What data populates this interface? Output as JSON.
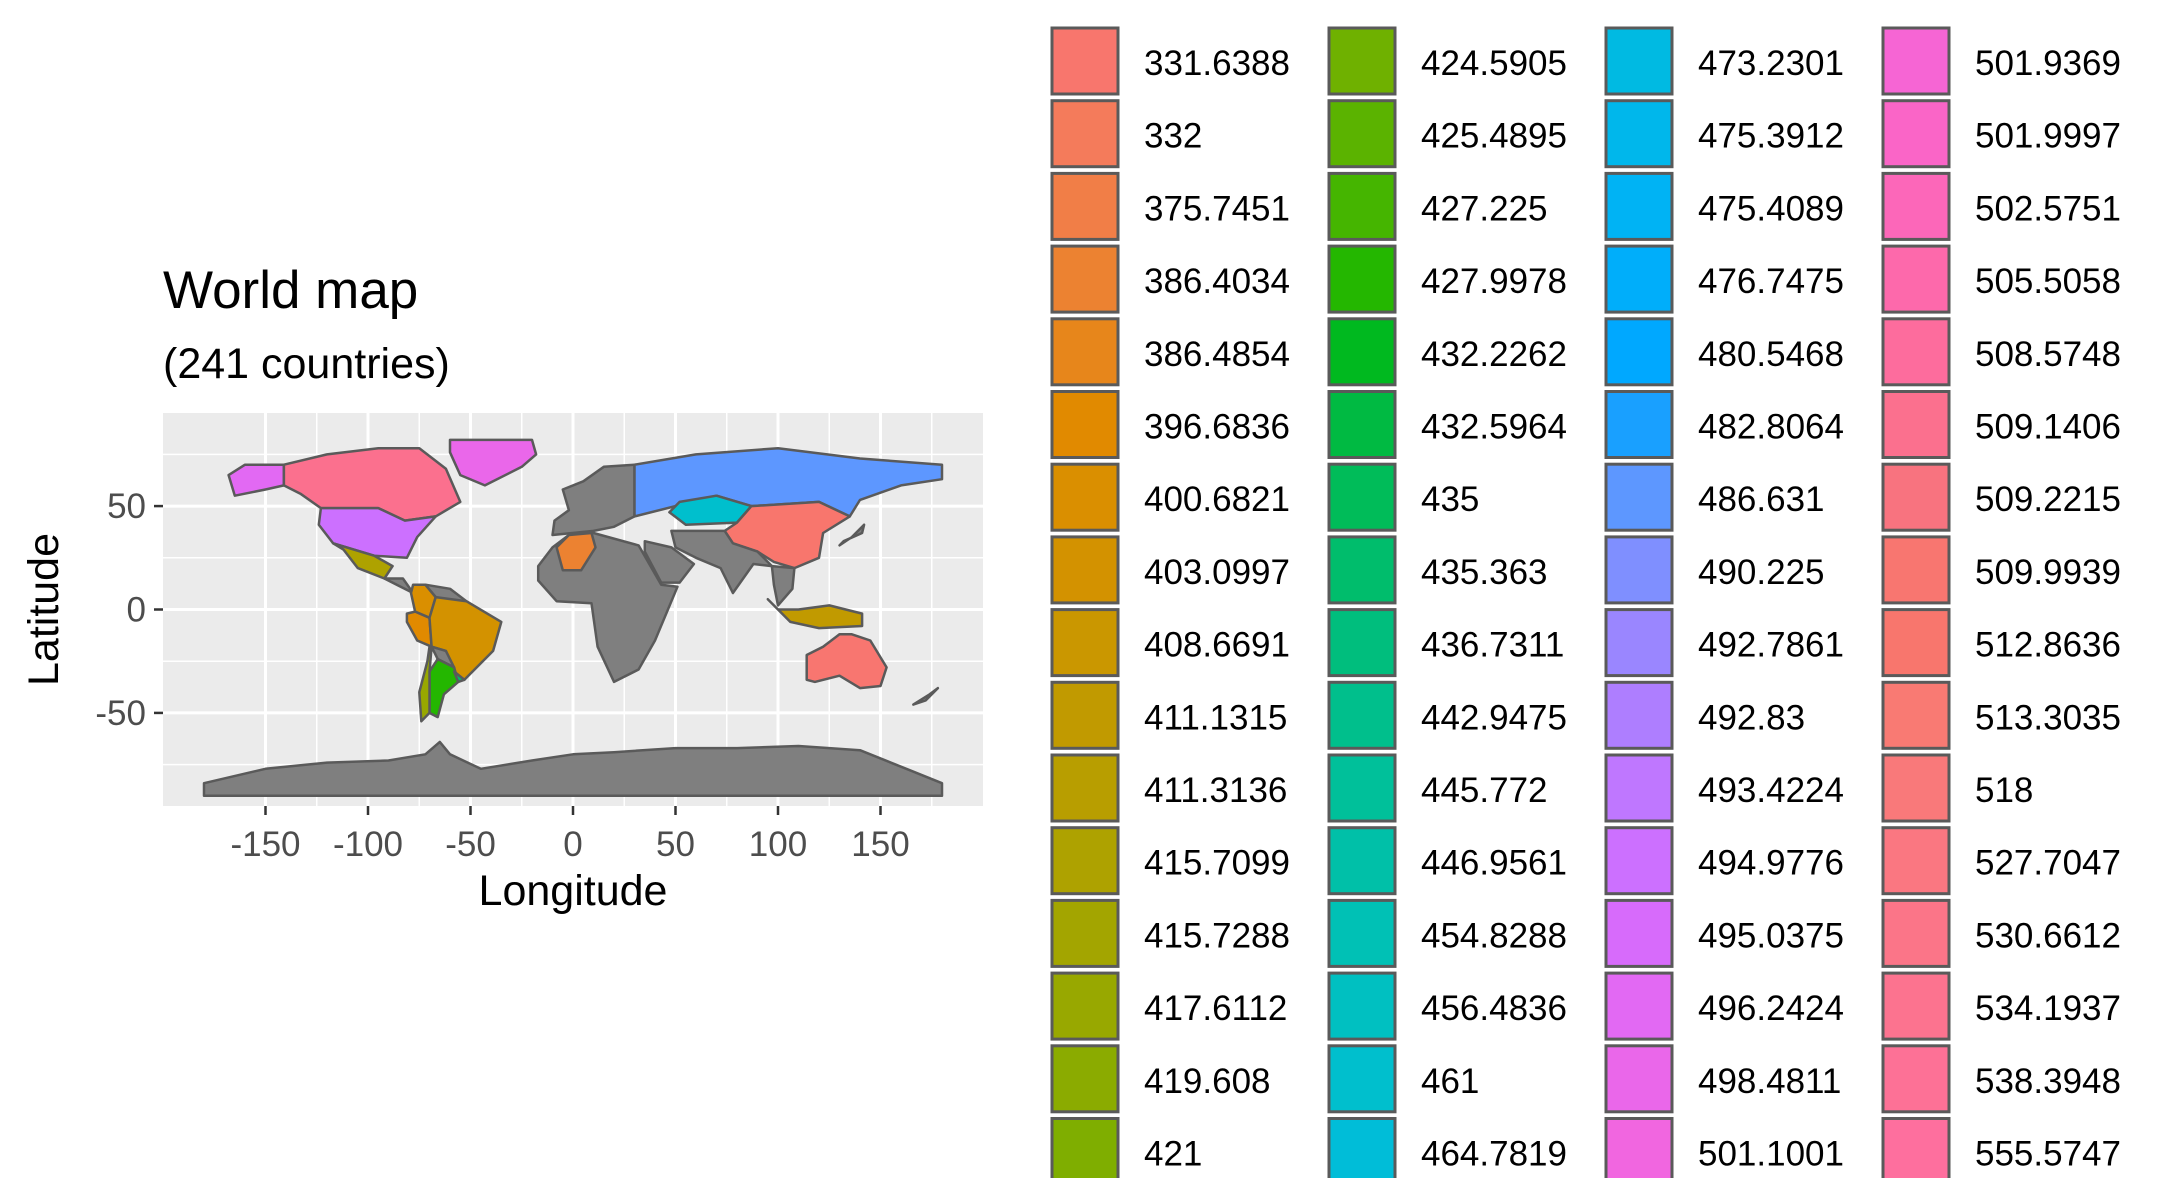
{
  "title": "World map",
  "subtitle": "(241 countries)",
  "axes": {
    "xlabel": "Longitude",
    "ylabel": "Latitude",
    "xticks": [
      -150,
      -100,
      -50,
      0,
      50,
      100,
      150
    ],
    "yticks": [
      50,
      0,
      -50
    ],
    "xlim": [
      -200,
      200
    ],
    "ylim": [
      -95,
      95
    ]
  },
  "colors": {
    "panel_bg": "#EBEBEB",
    "grid": "#FFFFFF",
    "border": "#5A5A5A",
    "no_data_fill": "#7F7F7F",
    "tick_text": "#4D4D4D"
  },
  "legend": {
    "values": [
      "331.6388",
      "332",
      "375.7451",
      "386.4034",
      "386.4854",
      "396.6836",
      "400.6821",
      "403.0997",
      "408.6691",
      "411.1315",
      "411.3136",
      "415.7099",
      "415.7288",
      "417.6112",
      "419.608",
      "421",
      "424.5905",
      "425.4895",
      "427.225",
      "427.9978",
      "432.2262",
      "432.5964",
      "435",
      "435.363",
      "436.7311",
      "442.9475",
      "445.772",
      "446.9561",
      "454.8288",
      "456.4836",
      "461",
      "464.7819",
      "473.2301",
      "475.3912",
      "475.4089",
      "476.7475",
      "480.5468",
      "482.8064",
      "486.631",
      "490.225",
      "492.7861",
      "492.83",
      "493.4224",
      "494.9776",
      "495.0375",
      "496.2424",
      "498.4811",
      "501.1001",
      "501.9369",
      "501.9997",
      "502.5751",
      "505.5058",
      "508.5748",
      "509.1406",
      "509.2215",
      "509.9939",
      "512.8636",
      "513.3035",
      "518",
      "527.7047",
      "530.6612",
      "534.1937",
      "538.3948",
      "555.5747"
    ],
    "colors": [
      "#F8766D",
      "#F47B5B",
      "#F17E47",
      "#EC8231",
      "#E7861B",
      "#E18A00",
      "#DA8F00",
      "#D39200",
      "#CA9700",
      "#C19A00",
      "#B89E00",
      "#AEA200",
      "#A3A500",
      "#98A800",
      "#8BAB00",
      "#7FAE00",
      "#6FB100",
      "#5BB300",
      "#45B500",
      "#24B700",
      "#00B91F",
      "#00BA42",
      "#00BC59",
      "#00BD6C",
      "#00BE7D",
      "#00BF8C",
      "#00C09A",
      "#00C0A8",
      "#00C1B5",
      "#00C0C1",
      "#00BFCD",
      "#00BDD8",
      "#00BAE2",
      "#00B7EB",
      "#00B3F4",
      "#00AEFA",
      "#00A8FF",
      "#19A0FF",
      "#5D97FF",
      "#7F8FFF",
      "#9A86FF",
      "#AE7EFF",
      "#BF77FF",
      "#CC70FF",
      "#D76BFB",
      "#E269F3",
      "#EA67EA",
      "#F166E0",
      "#F665D4",
      "#FA65C7",
      "#FC67B9",
      "#FD69AB",
      "#FD6C9D",
      "#FB708E",
      "#F8737F",
      "#F87670",
      "#F8766D",
      "#F97A73",
      "#F9797A",
      "#FA7781",
      "#FB7588",
      "#FC738F",
      "#FD7196",
      "#FE6F9E"
    ]
  },
  "map": {
    "highlighted": [
      {
        "name": "Canada",
        "value": "509.1406"
      },
      {
        "name": "Greenland",
        "value": "498.4811"
      },
      {
        "name": "Alaska",
        "value": "496.2424"
      },
      {
        "name": "United States",
        "value": "494.9776"
      },
      {
        "name": "Mexico",
        "value": "415.7099"
      },
      {
        "name": "Colombia",
        "value": "400.6821"
      },
      {
        "name": "Peru",
        "value": "396.6836"
      },
      {
        "name": "Brazil",
        "value": "403.0997"
      },
      {
        "name": "Chile",
        "value": "417.6112"
      },
      {
        "name": "Argentina",
        "value": "427.9978"
      },
      {
        "name": "Uruguay",
        "value": "435.363"
      },
      {
        "name": "Russia",
        "value": "486.631"
      },
      {
        "name": "Kazakhstan",
        "value": "461"
      },
      {
        "name": "China",
        "value": "512.8636"
      },
      {
        "name": "Algeria",
        "value": "386.4034"
      },
      {
        "name": "Australia",
        "value": "509.9939"
      },
      {
        "name": "Indonesia",
        "value": "411.1315"
      }
    ]
  }
}
